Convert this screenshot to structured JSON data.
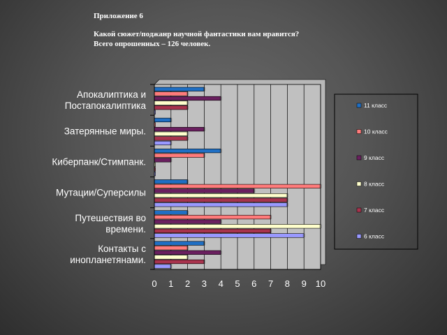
{
  "slide": {
    "appendix": "Приложение 6",
    "question": "Какой сюжет/поджанр научной фантастики вам нравится?",
    "respondents": "Всего опрошенных – 126 человек."
  },
  "chart_data": {
    "type": "bar",
    "orientation": "horizontal",
    "title": "",
    "xlabel": "",
    "ylabel": "",
    "xlim": [
      0,
      10
    ],
    "x_ticks": [
      "0",
      "1",
      "2",
      "3",
      "4",
      "5",
      "6",
      "7",
      "8",
      "9",
      "10"
    ],
    "grid": true,
    "legend_position": "right",
    "categories": [
      [
        "Апокалиптика и",
        "Постапокалиптика"
      ],
      [
        "Затерянные миры."
      ],
      [
        "Киберпанк/Стимпанк."
      ],
      [
        "Мутации/Суперсилы"
      ],
      [
        "Путешествия во",
        "времени."
      ],
      [
        "Контакты с",
        "инопланетянами."
      ]
    ],
    "series": [
      {
        "name": "11 класс",
        "color": "#1f6fc4",
        "values": [
          3,
          1,
          4,
          2,
          2,
          3
        ]
      },
      {
        "name": "10 класс",
        "color": "#ff7b7b",
        "values": [
          2,
          0,
          3,
          10,
          7,
          2
        ]
      },
      {
        "name": "9 класс",
        "color": "#6a1f5f",
        "values": [
          4,
          3,
          1,
          6,
          4,
          4
        ]
      },
      {
        "name": "8 класс",
        "color": "#ffffcc",
        "values": [
          2,
          2,
          0,
          8,
          10,
          2
        ]
      },
      {
        "name": "7 класс",
        "color": "#a8334d",
        "values": [
          2,
          2,
          0,
          8,
          7,
          3
        ]
      },
      {
        "name": "6 класс",
        "color": "#9999ff",
        "values": [
          0,
          1,
          0,
          8,
          9,
          1
        ]
      }
    ]
  }
}
